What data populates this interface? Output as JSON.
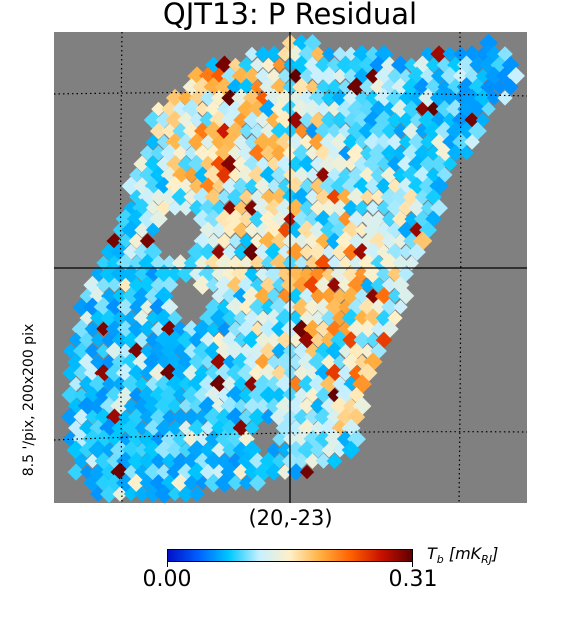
{
  "title": "QJT13: P Residual",
  "center_label": "(20,-23)",
  "side_label": "8.5 '/pix,   200x200 pix",
  "colorbar": {
    "min_label": "0.00",
    "max_label": "0.31",
    "units_main": "T",
    "units_sub": "b",
    "units_bracket_open": " [mK",
    "units_bracket_sub": "RJ",
    "units_bracket_close": "]",
    "stops": [
      "#0010c8",
      "#0060ff",
      "#00c8ff",
      "#c8f0ff",
      "#fff0c8",
      "#ffb040",
      "#ff6000",
      "#c81000",
      "#600000"
    ]
  },
  "map": {
    "background": "#808080",
    "seed": 13
  }
}
